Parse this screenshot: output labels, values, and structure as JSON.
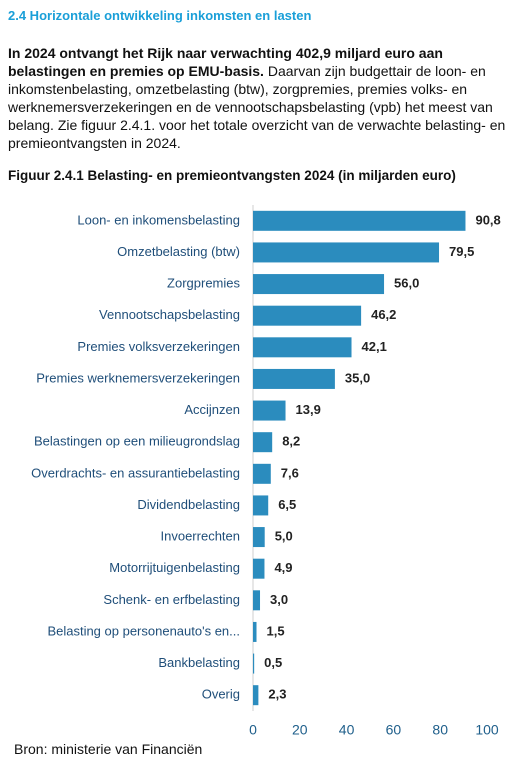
{
  "section_title": "2.4 Horizontale ontwikkeling inkomsten en lasten",
  "intro": {
    "bold": "In 2024 ontvangt het Rijk naar verwachting 402,9 miljard euro aan belastingen en premies op EMU-basis.",
    "text": "Daarvan zijn budgettair de loon- en inkomstenbelasting, omzetbelasting (btw), zorgpremies, premies volks- en werknemersverzekeringen en de vennootschapsbelasting (vpb) het meest van belang. Zie figuur 2.4.1. voor het totale overzicht van de verwachte belasting- en premieontvangsten in 2024."
  },
  "chart_data": {
    "type": "hbar",
    "title": "Figuur 2.4.1 Belasting- en premieontvangsten 2024 (in miljarden euro)",
    "categories": [
      "Loon- en inkomensbelasting",
      "Omzetbelasting (btw)",
      "Zorgpremies",
      "Vennootschapsbelasting",
      "Premies volksverzekeringen",
      "Premies werknemersverzekeringen",
      "Accijnzen",
      "Belastingen op een milieugrondslag",
      "Overdrachts- en assurantiebelasting",
      "Dividendbelasting",
      "Invoerrechten",
      "Motorrijtuigenbelasting",
      "Schenk- en erfbelasting",
      "Belasting op personenauto's en...",
      "Bankbelasting",
      "Overig"
    ],
    "values": [
      90.8,
      79.5,
      56.0,
      46.2,
      42.1,
      35.0,
      13.9,
      8.2,
      7.6,
      6.5,
      5.0,
      4.9,
      3.0,
      1.5,
      0.5,
      2.3
    ],
    "value_labels": [
      "90,8",
      "79,5",
      "56,0",
      "46,2",
      "42,1",
      "35,0",
      "13,9",
      "8,2",
      "7,6",
      "6,5",
      "5,0",
      "4,9",
      "3,0",
      "1,5",
      "0,5",
      "2,3"
    ],
    "color": "#2b8cbe",
    "xlim": [
      0,
      100
    ],
    "xticks": [
      0,
      20,
      40,
      60,
      80,
      100
    ]
  },
  "source": "Bron: ministerie van Financiën"
}
